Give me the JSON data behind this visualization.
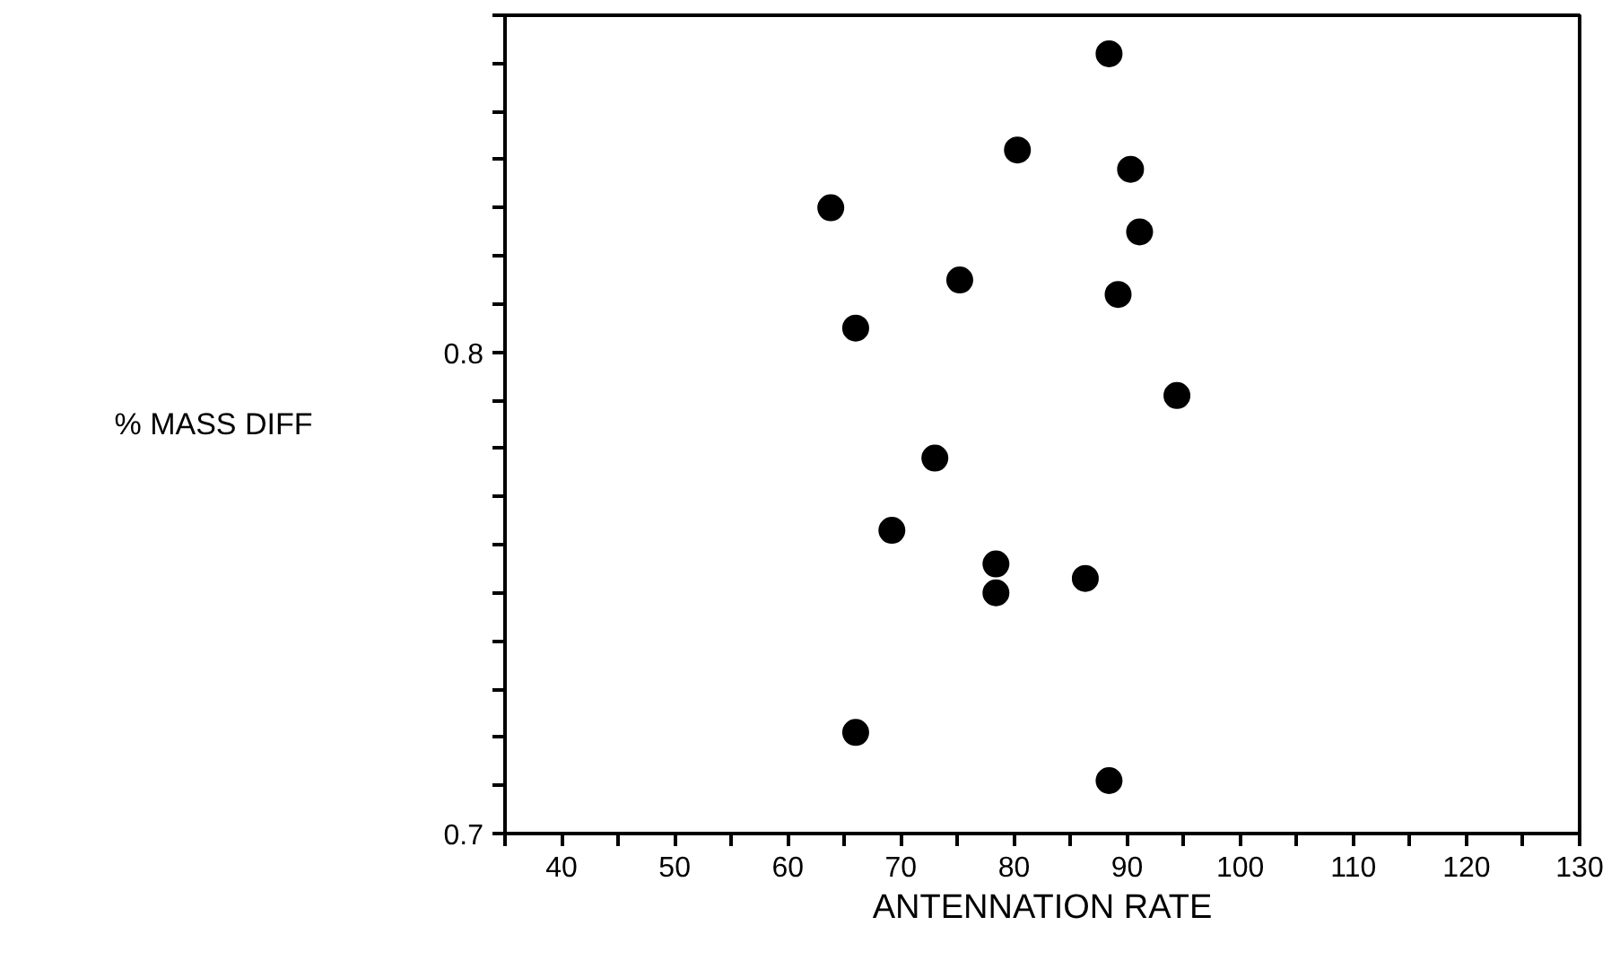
{
  "chart_data": {
    "type": "scatter",
    "xlabel": "ANTENNATION RATE",
    "ylabel": "% MASS DIFF",
    "xlim": [
      35,
      130
    ],
    "ylim": [
      0.7,
      0.87
    ],
    "xticks": [
      {
        "value": 35,
        "label": null
      },
      40,
      {
        "value": 45,
        "label": null
      },
      50,
      {
        "value": 55,
        "label": null
      },
      60,
      {
        "value": 65,
        "label": null
      },
      70,
      {
        "value": 75,
        "label": null
      },
      80,
      {
        "value": 85,
        "label": null
      },
      90,
      {
        "value": 95,
        "label": null
      },
      100,
      {
        "value": 105,
        "label": null
      },
      110,
      {
        "value": 115,
        "label": null
      },
      120,
      {
        "value": 125,
        "label": null
      },
      130
    ],
    "yticks": [
      0.7,
      {
        "value": 0.71,
        "label": null
      },
      {
        "value": 0.72,
        "label": null
      },
      {
        "value": 0.73,
        "label": null
      },
      {
        "value": 0.74,
        "label": null
      },
      {
        "value": 0.75,
        "label": null
      },
      {
        "value": 0.76,
        "label": null
      },
      {
        "value": 0.77,
        "label": null
      },
      {
        "value": 0.78,
        "label": null
      },
      {
        "value": 0.79,
        "label": null
      },
      0.8,
      {
        "value": 0.81,
        "label": null
      },
      {
        "value": 0.82,
        "label": null
      },
      {
        "value": 0.83,
        "label": null
      },
      {
        "value": 0.84,
        "label": null
      },
      {
        "value": 0.85,
        "label": null
      },
      {
        "value": 0.86,
        "label": null
      },
      {
        "value": 0.87,
        "label": null
      }
    ],
    "marker": "circle",
    "grid": false,
    "x": [
      88.4,
      80.3,
      90.3,
      63.8,
      91.1,
      75.2,
      89.2,
      66.0,
      94.4,
      73.0,
      69.2,
      78.4,
      78.4,
      86.3,
      66.0,
      88.4
    ],
    "series": [
      {
        "color": "#000000",
        "values": [
          0.862,
          0.842,
          0.838,
          0.83,
          0.825,
          0.815,
          0.812,
          0.805,
          0.791,
          0.778,
          0.763,
          0.756,
          0.75,
          0.753,
          0.721,
          0.711
        ]
      }
    ]
  }
}
